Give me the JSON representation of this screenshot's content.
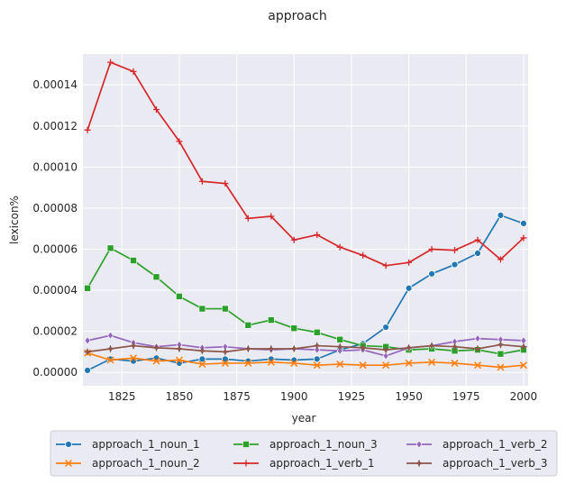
{
  "chart_data": {
    "type": "line",
    "title": "approach",
    "xlabel": "year",
    "ylabel": "lexicon%",
    "xlim": [
      1808,
      2002
    ],
    "ylim": [
      -6.5e-06,
      0.000155
    ],
    "x_ticks": [
      1825,
      1850,
      1875,
      1900,
      1925,
      1950,
      1975,
      2000
    ],
    "x_tick_labels": [
      "1825",
      "1850",
      "1875",
      "1900",
      "1925",
      "1950",
      "1975",
      "2000"
    ],
    "y_ticks": [
      0,
      2e-05,
      4e-05,
      6e-05,
      8e-05,
      0.0001,
      0.00012,
      0.00014
    ],
    "y_tick_labels": [
      "0.00000",
      "0.00002",
      "0.00004",
      "0.00006",
      "0.00008",
      "0.00010",
      "0.00012",
      "0.00014"
    ],
    "grid": true,
    "legend_position": "bottom-center",
    "x": [
      1810,
      1820,
      1830,
      1840,
      1850,
      1860,
      1870,
      1880,
      1890,
      1900,
      1910,
      1920,
      1930,
      1940,
      1950,
      1960,
      1970,
      1980,
      1990,
      2000
    ],
    "series": [
      {
        "name": "approach_1_noun_1",
        "color": "#1f77b4",
        "marker": "circle",
        "values": [
          1e-06,
          6.5e-06,
          5.5e-06,
          7e-06,
          4.5e-06,
          6.5e-06,
          6.5e-06,
          5.5e-06,
          6.5e-06,
          6e-06,
          6.5e-06,
          1.1e-05,
          1.4e-05,
          2.2e-05,
          4.1e-05,
          4.8e-05,
          5.25e-05,
          5.8e-05,
          7.65e-05,
          7.25e-05
        ]
      },
      {
        "name": "approach_1_noun_2",
        "color": "#ff7f0e",
        "marker": "x",
        "values": [
          9.5e-06,
          6e-06,
          7e-06,
          5.5e-06,
          6e-06,
          4e-06,
          4.5e-06,
          4.5e-06,
          5e-06,
          4.5e-06,
          3.5e-06,
          4e-06,
          3.5e-06,
          3.5e-06,
          4.5e-06,
          5e-06,
          4.5e-06,
          3.5e-06,
          2.5e-06,
          3.5e-06
        ]
      },
      {
        "name": "approach_1_noun_3",
        "color": "#2ca02c",
        "marker": "square",
        "values": [
          4.1e-05,
          6.05e-05,
          5.45e-05,
          4.65e-05,
          3.7e-05,
          3.1e-05,
          3.1e-05,
          2.3e-05,
          2.55e-05,
          2.15e-05,
          1.95e-05,
          1.6e-05,
          1.3e-05,
          1.25e-05,
          1.1e-05,
          1.15e-05,
          1.05e-05,
          1.1e-05,
          9e-06,
          1.1e-05
        ]
      },
      {
        "name": "approach_1_verb_1",
        "color": "#d62728",
        "marker": "plus",
        "values": [
          0.000118,
          0.000151,
          0.0001465,
          0.000128,
          0.0001125,
          9.3e-05,
          9.2e-05,
          7.5e-05,
          7.6e-05,
          6.45e-05,
          6.7e-05,
          6.1e-05,
          5.7e-05,
          5.2e-05,
          5.35e-05,
          6e-05,
          5.95e-05,
          6.45e-05,
          5.5e-05,
          6.55e-05
        ]
      },
      {
        "name": "approach_1_verb_2",
        "color": "#9467bd",
        "marker": "diamond",
        "values": [
          1.55e-05,
          1.8e-05,
          1.45e-05,
          1.25e-05,
          1.35e-05,
          1.2e-05,
          1.25e-05,
          1.15e-05,
          1.1e-05,
          1.15e-05,
          1.1e-05,
          1.05e-05,
          1.1e-05,
          8e-06,
          1.2e-05,
          1.3e-05,
          1.5e-05,
          1.65e-05,
          1.6e-05,
          1.55e-05
        ]
      },
      {
        "name": "approach_1_verb_3",
        "color": "#8c564b",
        "marker": "star",
        "values": [
          1e-05,
          1.15e-05,
          1.3e-05,
          1.2e-05,
          1.15e-05,
          1.05e-05,
          1e-05,
          1.15e-05,
          1.15e-05,
          1.15e-05,
          1.3e-05,
          1.25e-05,
          1.2e-05,
          1.1e-05,
          1.2e-05,
          1.3e-05,
          1.25e-05,
          1.15e-05,
          1.35e-05,
          1.25e-05
        ]
      }
    ]
  }
}
